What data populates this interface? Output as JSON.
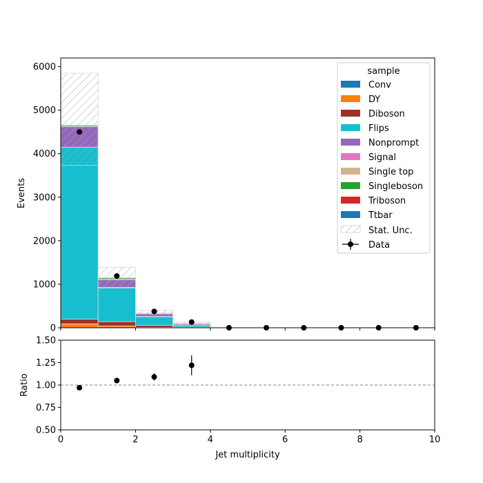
{
  "chart_data": {
    "type": "bar",
    "stacked": true,
    "x_bins": [
      0,
      1,
      2,
      3,
      4,
      5,
      6,
      7,
      8,
      9,
      10
    ],
    "xlabel": "Jet multiplicity",
    "ylabel": "Events",
    "ratio_ylabel": "Ratio",
    "xlim": [
      0,
      10
    ],
    "ylim": [
      0,
      6200
    ],
    "ratio_ylim": [
      0.5,
      1.5
    ],
    "x_ticks": [
      0,
      2,
      4,
      6,
      8,
      10
    ],
    "y_ticks": [
      0,
      1000,
      2000,
      3000,
      4000,
      5000,
      6000
    ],
    "ratio_y_ticks": [
      "0.50",
      "0.75",
      "1.00",
      "1.25",
      "1.50"
    ],
    "ratio_reference": 1.0,
    "legend": {
      "title": "sample",
      "placement": "top-right"
    },
    "stat_unc_label": "Stat. Unc.",
    "data_label": "Data",
    "series": [
      {
        "name": "Conv",
        "color": "#1f77b4",
        "values": [
          0,
          0,
          0,
          0,
          0,
          0,
          0,
          0,
          0,
          0
        ]
      },
      {
        "name": "DY",
        "color": "#ff7f0e",
        "values": [
          90,
          40,
          10,
          3,
          0,
          0,
          0,
          0,
          0,
          0
        ]
      },
      {
        "name": "Diboson",
        "color": "#a0302a",
        "values": [
          110,
          100,
          45,
          15,
          0,
          0,
          0,
          0,
          0,
          0
        ]
      },
      {
        "name": "Flips",
        "color": "#17becf",
        "values": [
          3950,
          790,
          205,
          48,
          0,
          0,
          0,
          0,
          0,
          0
        ]
      },
      {
        "name": "Nonprompt",
        "color": "#9467bd",
        "values": [
          470,
          175,
          60,
          25,
          0,
          0,
          0,
          0,
          0,
          0
        ]
      },
      {
        "name": "Signal",
        "color": "#e377c2",
        "values": [
          0,
          5,
          5,
          4,
          0,
          0,
          0,
          0,
          0,
          0
        ]
      },
      {
        "name": "Single top",
        "color": "#d2b48c",
        "values": [
          5,
          5,
          3,
          2,
          0,
          0,
          0,
          0,
          0,
          0
        ]
      },
      {
        "name": "Singleboson",
        "color": "#2ca02c",
        "values": [
          25,
          30,
          5,
          2,
          0,
          0,
          0,
          0,
          0,
          0
        ]
      },
      {
        "name": "Triboson",
        "color": "#d62728",
        "values": [
          5,
          3,
          2,
          1,
          0,
          0,
          0,
          0,
          0,
          0
        ]
      },
      {
        "name": "Ttbar",
        "color": "#1f77b4",
        "values": [
          5,
          2,
          5,
          1,
          0,
          0,
          0,
          0,
          0,
          0
        ]
      }
    ],
    "stat_unc": {
      "down": [
        3730,
        910,
        250,
        60,
        0,
        0,
        0,
        0,
        0,
        0
      ],
      "up": [
        5850,
        1390,
        400,
        130,
        0,
        0,
        0,
        0,
        0,
        0
      ]
    },
    "data": {
      "x": [
        0.5,
        1.5,
        2.5,
        3.5,
        4.5,
        5.5,
        6.5,
        7.5,
        8.5,
        9.5
      ],
      "y": [
        4500,
        1190,
        375,
        130,
        0,
        0,
        0,
        0,
        0,
        0
      ]
    },
    "ratio": {
      "x": [
        0.5,
        1.5,
        2.5,
        3.5
      ],
      "y": [
        0.97,
        1.05,
        1.09,
        1.22
      ],
      "err": [
        0.01,
        0.02,
        0.04,
        0.11
      ]
    }
  }
}
